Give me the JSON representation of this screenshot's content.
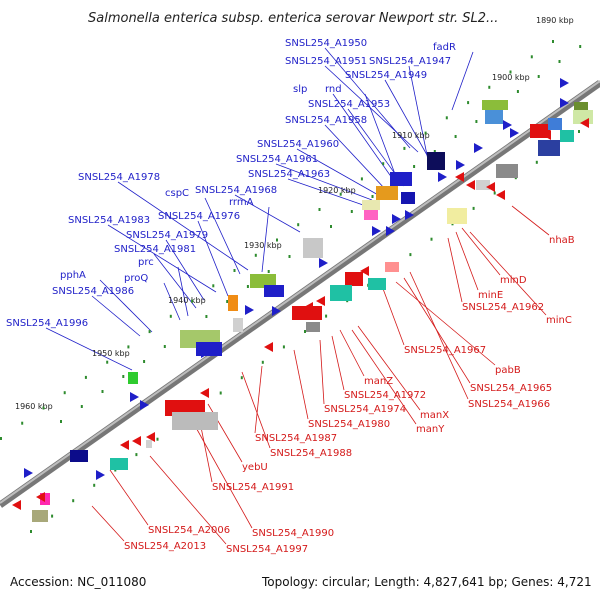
{
  "title": "Salmonella enterica subsp. enterica serovar Newport str. SL2...",
  "footer": {
    "accession": "Accession: NC_011080",
    "topology": "Topology: circular; Length: 4,827,641 bp; Genes: 4,721"
  },
  "ticks": [
    "1890 kbp",
    "1900 kbp",
    "1910 kbp",
    "1920 kbp",
    "1930 kbp",
    "1940 kbp",
    "1950 kbp",
    "1960 kbp"
  ],
  "labels_top": [
    "SNSL254_A1950",
    "SNSL254_A1951",
    "SNSL254_A1947",
    "SNSL254_A1949",
    "fadR",
    "slp",
    "rnd",
    "SNSL254_A1953",
    "SNSL254_A1958",
    "SNSL254_A1960",
    "SNSL254_A1961",
    "SNSL254_A1963",
    "SNSL254_A1978",
    "cspC",
    "SNSL254_A1968",
    "rrmA",
    "SNSL254_A1983",
    "SNSL254_A1976",
    "SNSL254_A1979",
    "SNSL254_A1981",
    "prc",
    "proQ",
    "pphA",
    "SNSL254_A1986",
    "SNSL254_A1996"
  ],
  "labels_bottom": [
    "nhaB",
    "minD",
    "minE",
    "SNSL254_A1962",
    "minC",
    "SNSL254_A1967",
    "pabB",
    "SNSL254_A1965",
    "SNSL254_A1966",
    "manZ",
    "SNSL254_A1972",
    "SNSL254_A1974",
    "manX",
    "SNSL254_A1980",
    "manY",
    "SNSL254_A1987",
    "SNSL254_A1988",
    "yebU",
    "SNSL254_A1991",
    "SNSL254_A2006",
    "SNSL254_A1990",
    "SNSL254_A2013",
    "SNSL254_A1997"
  ]
}
